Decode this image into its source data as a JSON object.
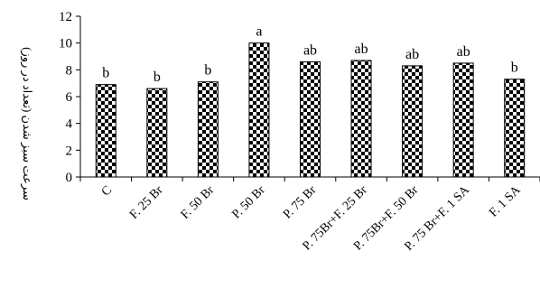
{
  "chart_data": {
    "type": "bar",
    "title": "",
    "xlabel": "",
    "ylabel": "سرعت سبز شدن (تعداد در روز)",
    "ylim": [
      0,
      12
    ],
    "yticks": [
      0,
      2,
      4,
      6,
      8,
      10,
      12
    ],
    "grid": false,
    "legend": "none",
    "bar_fill": "checkerboard",
    "colors": {
      "bar_dark": "#000000",
      "bar_light": "#ffffff",
      "axis": "#000000"
    },
    "categories": [
      "C",
      "F. 25 Br",
      "F. 50 Br",
      "P. 50 Br",
      "P. 75 Br",
      "P. 75Br+F. 25 Br",
      "P. 75Br+F. 50 Br",
      "P. 75 Br+F. 1 SA",
      "F. 1 SA"
    ],
    "values": [
      6.9,
      6.6,
      7.1,
      10.0,
      8.6,
      8.7,
      8.3,
      8.5,
      7.3
    ],
    "annotations": [
      "b",
      "b",
      "b",
      "a",
      "ab",
      "ab",
      "ab",
      "ab",
      "b"
    ]
  }
}
